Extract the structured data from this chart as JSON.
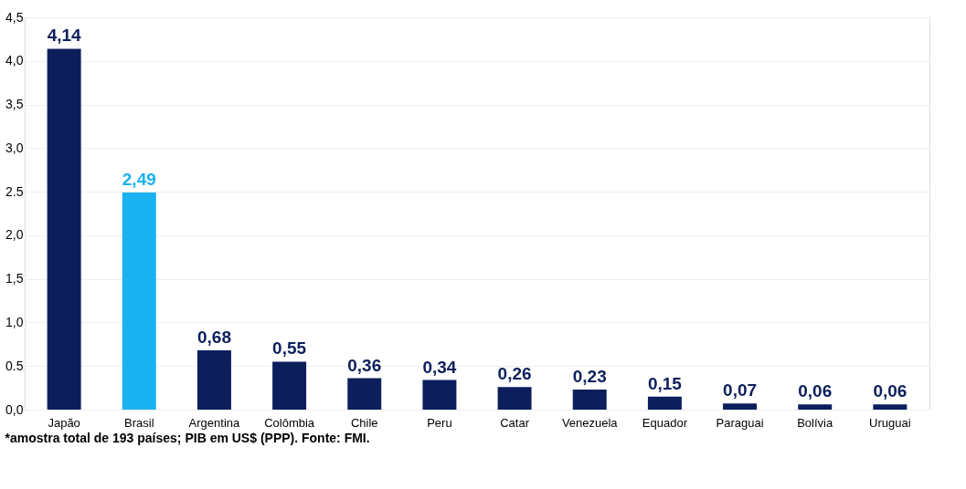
{
  "chart_data": {
    "type": "bar",
    "categories": [
      "Japão",
      "Brasil",
      "Argentina",
      "Colômbia",
      "Chile",
      "Peru",
      "Catar",
      "Venezuela",
      "Equador",
      "Paraguai",
      "Bolívia",
      "Uruguai"
    ],
    "values": [
      4.14,
      2.49,
      0.68,
      0.55,
      0.36,
      0.34,
      0.26,
      0.23,
      0.15,
      0.07,
      0.06,
      0.06
    ],
    "colors": [
      "#0c1f5c",
      "#1ab2f0",
      "#0c1f5c",
      "#0c1f5c",
      "#0c1f5c",
      "#0c1f5c",
      "#0c1f5c",
      "#0c1f5c",
      "#0c1f5c",
      "#0c1f5c",
      "#0c1f5c",
      "#0c1f5c"
    ],
    "value_labels": [
      "4,14",
      "2,49",
      "0,68",
      "0,55",
      "0,36",
      "0,34",
      "0,26",
      "0,23",
      "0,15",
      "0,07",
      "0,06",
      "0,06"
    ],
    "ylim": [
      0,
      4.5
    ],
    "yticks": [
      {
        "value": 0,
        "label": "0,0"
      },
      {
        "value": 0.5,
        "label": "0.5"
      },
      {
        "value": 1,
        "label": "1,0"
      },
      {
        "value": 1.5,
        "label": "1,5"
      },
      {
        "value": 2,
        "label": "2,0"
      },
      {
        "value": 2.5,
        "label": "2.5"
      },
      {
        "value": 3,
        "label": "3,0"
      },
      {
        "value": 3.5,
        "label": "3,5"
      },
      {
        "value": 4,
        "label": "4,0"
      },
      {
        "value": 4.5,
        "label": "4,5"
      }
    ],
    "grid": "y",
    "annotations": [
      "*amostra total de 193 países; PIB em US$ (PPP). Fonte: FMI."
    ]
  }
}
